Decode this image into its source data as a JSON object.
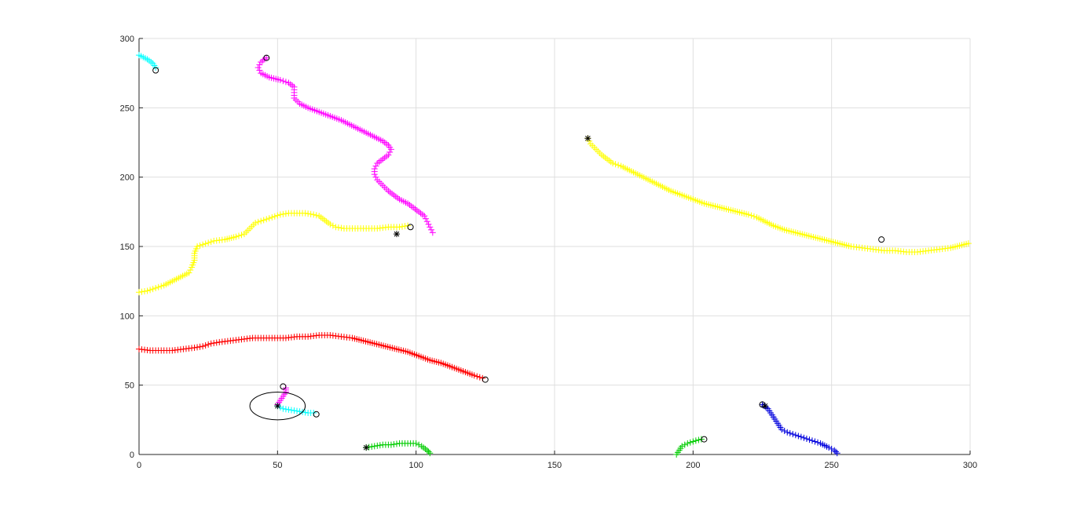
{
  "chart_data": {
    "type": "scatter",
    "title": "",
    "xlabel": "",
    "ylabel": "",
    "xlim": [
      0,
      300
    ],
    "ylim": [
      0,
      300
    ],
    "xticks": [
      0,
      50,
      100,
      150,
      200,
      250,
      300
    ],
    "yticks": [
      0,
      50,
      100,
      150,
      200,
      250,
      300
    ],
    "grid": true,
    "marker": "+",
    "series": [
      {
        "color": "#00FFFF",
        "points": [
          [
            0,
            288
          ],
          [
            3,
            285
          ],
          [
            5,
            282
          ],
          [
            6,
            279
          ]
        ],
        "end_marker": "o",
        "end": [
          6,
          277
        ]
      },
      {
        "color": "#FF00FF",
        "points": [
          [
            46,
            286
          ],
          [
            44,
            283
          ],
          [
            43,
            279
          ],
          [
            44,
            275
          ],
          [
            47,
            272
          ],
          [
            51,
            270
          ],
          [
            54,
            268
          ],
          [
            56,
            265
          ],
          [
            56,
            261
          ],
          [
            56,
            257
          ],
          [
            58,
            253
          ],
          [
            61,
            250
          ],
          [
            65,
            247
          ],
          [
            69,
            244
          ],
          [
            73,
            241
          ],
          [
            76,
            238
          ],
          [
            79,
            235
          ],
          [
            82,
            232
          ],
          [
            85,
            229
          ],
          [
            88,
            226
          ],
          [
            90,
            223
          ],
          [
            91,
            220
          ],
          [
            90,
            216
          ],
          [
            88,
            213
          ],
          [
            86,
            210
          ],
          [
            85,
            206
          ],
          [
            85,
            202
          ],
          [
            86,
            198
          ],
          [
            88,
            194
          ],
          [
            90,
            190
          ],
          [
            92,
            187
          ],
          [
            94,
            184
          ],
          [
            97,
            181
          ],
          [
            99,
            178
          ],
          [
            101,
            175
          ],
          [
            103,
            172
          ],
          [
            104,
            168
          ],
          [
            105,
            164
          ],
          [
            106,
            160
          ]
        ],
        "start_marker": "o",
        "start": [
          46,
          286
        ],
        "end_marker": "*",
        "end": [
          93,
          159
        ]
      },
      {
        "color": "#FFFF00",
        "points": [
          [
            0,
            117
          ],
          [
            3,
            118
          ],
          [
            6,
            120
          ],
          [
            9,
            122
          ],
          [
            12,
            125
          ],
          [
            15,
            128
          ],
          [
            18,
            131
          ],
          [
            19,
            135
          ],
          [
            20,
            140
          ],
          [
            20,
            145
          ],
          [
            21,
            150
          ],
          [
            24,
            152
          ],
          [
            27,
            154
          ],
          [
            31,
            155
          ],
          [
            35,
            157
          ],
          [
            38,
            159
          ],
          [
            40,
            163
          ],
          [
            42,
            167
          ],
          [
            45,
            169
          ],
          [
            48,
            171
          ],
          [
            51,
            173
          ],
          [
            54,
            174
          ],
          [
            57,
            174
          ],
          [
            60,
            174
          ],
          [
            63,
            173
          ],
          [
            65,
            172
          ],
          [
            67,
            169
          ],
          [
            69,
            166
          ],
          [
            71,
            164
          ],
          [
            74,
            163
          ],
          [
            78,
            163
          ],
          [
            82,
            163
          ],
          [
            86,
            163
          ],
          [
            90,
            164
          ],
          [
            94,
            164
          ],
          [
            97,
            165
          ]
        ],
        "end_marker": "o",
        "end": [
          98,
          164
        ]
      },
      {
        "color": "#FFFF00",
        "points": [
          [
            162,
            228
          ],
          [
            163,
            224
          ],
          [
            165,
            220
          ],
          [
            167,
            216
          ],
          [
            169,
            213
          ],
          [
            171,
            210
          ],
          [
            174,
            208
          ],
          [
            177,
            205
          ],
          [
            180,
            202
          ],
          [
            183,
            199
          ],
          [
            186,
            196
          ],
          [
            189,
            193
          ],
          [
            192,
            190
          ],
          [
            196,
            187
          ],
          [
            200,
            184
          ],
          [
            204,
            181
          ],
          [
            208,
            179
          ],
          [
            212,
            177
          ],
          [
            216,
            175
          ],
          [
            220,
            173
          ],
          [
            223,
            171
          ],
          [
            226,
            168
          ],
          [
            229,
            165
          ],
          [
            233,
            162
          ],
          [
            237,
            160
          ],
          [
            241,
            158
          ],
          [
            245,
            156
          ],
          [
            249,
            154
          ],
          [
            253,
            152
          ],
          [
            257,
            150
          ],
          [
            261,
            149
          ],
          [
            265,
            148
          ],
          [
            269,
            147
          ],
          [
            273,
            147
          ],
          [
            277,
            146
          ],
          [
            281,
            146
          ],
          [
            285,
            147
          ],
          [
            289,
            148
          ],
          [
            293,
            149
          ],
          [
            297,
            151
          ],
          [
            301,
            153
          ],
          [
            305,
            155
          ]
        ],
        "start_marker": "*",
        "start": [
          162,
          228
        ],
        "end_marker": "o",
        "end": [
          268,
          155
        ]
      },
      {
        "color": "#FF0000",
        "points": [
          [
            0,
            76
          ],
          [
            4,
            75
          ],
          [
            8,
            75
          ],
          [
            12,
            75
          ],
          [
            16,
            76
          ],
          [
            20,
            77
          ],
          [
            23,
            78
          ],
          [
            26,
            80
          ],
          [
            29,
            81
          ],
          [
            33,
            82
          ],
          [
            37,
            83
          ],
          [
            41,
            84
          ],
          [
            45,
            84
          ],
          [
            49,
            84
          ],
          [
            53,
            84
          ],
          [
            57,
            85
          ],
          [
            61,
            85
          ],
          [
            65,
            86
          ],
          [
            69,
            86
          ],
          [
            73,
            85
          ],
          [
            77,
            84
          ],
          [
            81,
            82
          ],
          [
            85,
            80
          ],
          [
            89,
            78
          ],
          [
            93,
            76
          ],
          [
            97,
            74
          ],
          [
            101,
            71
          ],
          [
            105,
            68
          ],
          [
            109,
            66
          ],
          [
            113,
            63
          ],
          [
            117,
            60
          ],
          [
            121,
            57
          ],
          [
            124,
            55
          ]
        ],
        "end_marker": "o",
        "end": [
          125,
          54
        ]
      },
      {
        "color": "#FF00FF",
        "points": [
          [
            53,
            48
          ],
          [
            53,
            45
          ],
          [
            52,
            42
          ],
          [
            51,
            39
          ],
          [
            50,
            36
          ]
        ],
        "start_marker": "o",
        "start": [
          52,
          49
        ]
      },
      {
        "color": "#00FFFF",
        "points": [
          [
            50,
            35
          ],
          [
            52,
            33
          ],
          [
            55,
            32
          ],
          [
            58,
            31
          ],
          [
            61,
            30
          ],
          [
            63,
            30
          ]
        ],
        "start_marker": "*",
        "start": [
          50,
          35
        ],
        "end_marker": "o",
        "end": [
          64,
          29
        ]
      },
      {
        "color": "#00CC00",
        "points": [
          [
            82,
            5
          ],
          [
            85,
            6
          ],
          [
            88,
            7
          ],
          [
            91,
            7
          ],
          [
            94,
            8
          ],
          [
            97,
            8
          ],
          [
            100,
            8
          ],
          [
            102,
            6
          ],
          [
            104,
            3
          ],
          [
            105,
            1
          ]
        ],
        "start_marker": "*",
        "start": [
          82,
          5
        ]
      },
      {
        "color": "#00CC00",
        "points": [
          [
            194,
            0
          ],
          [
            195,
            3
          ],
          [
            196,
            6
          ],
          [
            198,
            8
          ],
          [
            201,
            10
          ],
          [
            203,
            11
          ]
        ],
        "end_marker": "o",
        "end": [
          204,
          11
        ]
      },
      {
        "color": "#0000DD",
        "points": [
          [
            225,
            36
          ],
          [
            227,
            33
          ],
          [
            228,
            30
          ],
          [
            229,
            27
          ],
          [
            230,
            24
          ],
          [
            231,
            21
          ],
          [
            232,
            18
          ],
          [
            234,
            16
          ],
          [
            237,
            14
          ],
          [
            240,
            12
          ],
          [
            243,
            10
          ],
          [
            246,
            8
          ],
          [
            249,
            5
          ],
          [
            251,
            3
          ],
          [
            252,
            1
          ]
        ],
        "start_marker": "o",
        "start": [
          225,
          36
        ],
        "end_marker": "*",
        "end": [
          226,
          35
        ]
      }
    ],
    "ellipse": {
      "cx": 50,
      "cy": 35,
      "rx": 10,
      "ry": 10
    }
  }
}
